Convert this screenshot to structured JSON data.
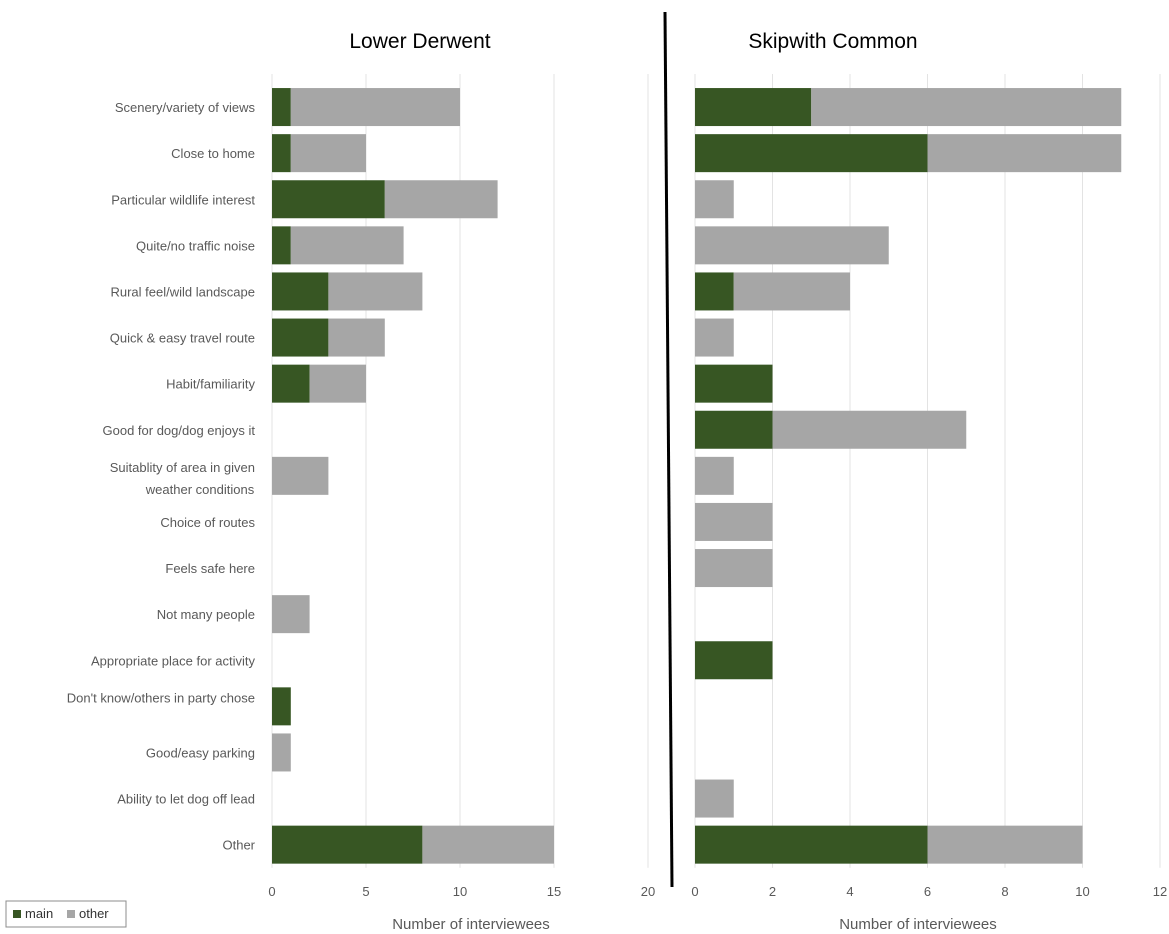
{
  "chart_data": [
    {
      "type": "bar",
      "orientation": "horizontal",
      "stacked": true,
      "title": "Lower Derwent",
      "xlabel": "Number of interviewees",
      "ylabel": "",
      "xlim": [
        0,
        20
      ],
      "xticks": [
        0,
        5,
        10,
        15,
        20
      ],
      "grid": true,
      "categories": [
        "Scenery/variety of views",
        "Close to home",
        "Particular wildlife interest",
        "Quite/no traffic noise",
        "Rural feel/wild landscape",
        "Quick & easy travel route",
        "Habit/familiarity",
        "Good for dog/dog enjoys it",
        "Suitablity of area in given weather conditions",
        "Choice of routes",
        "Feels safe here",
        "Not many people",
        "Appropriate place for activity",
        "Don't know/others in party chose",
        "Good/easy parking",
        "Ability to let dog off lead",
        "Other"
      ],
      "series": [
        {
          "name": "main",
          "color": "#375623",
          "values": [
            1,
            1,
            6,
            1,
            3,
            3,
            2,
            0,
            0,
            0,
            0,
            0,
            0,
            1,
            0,
            0,
            8
          ]
        },
        {
          "name": "other",
          "color": "#a6a6a6",
          "values": [
            9,
            4,
            6,
            6,
            5,
            3,
            3,
            0,
            3,
            0,
            0,
            2,
            0,
            0,
            1,
            0,
            7
          ]
        }
      ]
    },
    {
      "type": "bar",
      "orientation": "horizontal",
      "stacked": true,
      "title": "Skipwith Common",
      "xlabel": "Number of interviewees",
      "ylabel": "",
      "xlim": [
        0,
        12
      ],
      "xticks": [
        0,
        2,
        4,
        6,
        8,
        10,
        12
      ],
      "grid": true,
      "categories": [
        "Scenery/variety of views",
        "Close to home",
        "Particular wildlife interest",
        "Quite/no traffic noise",
        "Rural feel/wild landscape",
        "Quick & easy travel route",
        "Habit/familiarity",
        "Good for dog/dog enjoys it",
        "Suitablity of area in given weather conditions",
        "Choice of routes",
        "Feels safe here",
        "Not many people",
        "Appropriate place for activity",
        "Don't know/others in party chose",
        "Good/easy parking",
        "Ability to let dog off lead",
        "Other"
      ],
      "series": [
        {
          "name": "main",
          "color": "#375623",
          "values": [
            3,
            6,
            0,
            0,
            1,
            0,
            2,
            2,
            0,
            0,
            0,
            0,
            2,
            0,
            0,
            0,
            6
          ]
        },
        {
          "name": "other",
          "color": "#a6a6a6",
          "values": [
            8,
            5,
            1,
            5,
            3,
            1,
            0,
            5,
            1,
            2,
            2,
            0,
            0,
            0,
            0,
            1,
            4
          ]
        }
      ]
    }
  ],
  "legend": {
    "position": "bottom-left",
    "items": [
      {
        "label": "main",
        "color": "#375623"
      },
      {
        "label": "other",
        "color": "#a6a6a6"
      }
    ]
  }
}
